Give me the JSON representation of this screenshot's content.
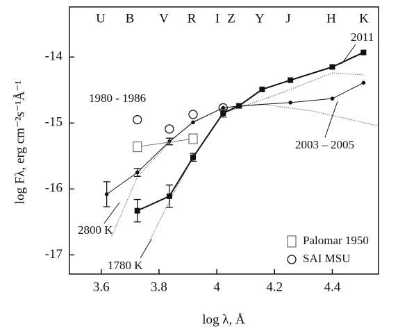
{
  "chart_data": {
    "type": "scatter",
    "xlabel": "log λ, Å",
    "ylabel": "log Fλ, erg cm⁻²s⁻¹Å⁻¹",
    "xlim": [
      3.49,
      4.56
    ],
    "xticks": [
      3.6,
      3.8,
      4.0,
      4.2,
      4.4
    ],
    "ylim": [
      -17.29,
      -13.24
    ],
    "yticks": [
      -14,
      -15,
      -16,
      -17
    ],
    "bands": [
      "U",
      "B",
      "V",
      "R",
      "I",
      "Z",
      "Y",
      "J",
      "H",
      "K"
    ],
    "annotations": [
      "1980 - 1986"
    ],
    "series": [
      {
        "name": "2011",
        "marker": "square",
        "color": "#111",
        "x": [
          3.725,
          3.836,
          3.918,
          4.022,
          4.077,
          4.157,
          4.255,
          4.4,
          4.508
        ],
        "values": [
          -16.33,
          -16.11,
          -15.52,
          -14.85,
          -14.74,
          -14.49,
          -14.35,
          -14.15,
          -13.93
        ],
        "errors": [
          0.17,
          0.17,
          0.06,
          0.06,
          null,
          null,
          null,
          null,
          null
        ]
      },
      {
        "name": "2003 – 2005",
        "marker": "dot",
        "color": "#111",
        "x": [
          3.619,
          3.725,
          3.836,
          3.918,
          4.022,
          4.077,
          4.255,
          4.4,
          4.508
        ],
        "values": [
          -16.08,
          -15.75,
          -15.28,
          -14.99,
          -14.77,
          -14.74,
          -14.69,
          -14.63,
          -14.39
        ],
        "errors": [
          0.19,
          0.06,
          0.05,
          null,
          null,
          null,
          null,
          null,
          null
        ]
      },
      {
        "name": "Palomar 1950",
        "marker": "open-square",
        "color": "#777",
        "legend": true,
        "x": [
          3.725,
          3.918
        ],
        "values": [
          -15.36,
          -15.24
        ]
      },
      {
        "name": "SAI MSU",
        "marker": "open-circle",
        "color": "#111",
        "legend": true,
        "x": [
          3.725,
          3.836,
          3.918,
          4.022
        ],
        "values": [
          -14.95,
          -15.09,
          -14.87,
          -14.77
        ]
      }
    ],
    "models": [
      {
        "name": "2800 K",
        "x": [
          3.636,
          3.725,
          3.836,
          3.918,
          4.022,
          4.166,
          4.335,
          4.564
        ],
        "values": [
          -16.72,
          -15.82,
          -15.29,
          -14.98,
          -14.77,
          -14.72,
          -14.82,
          -15.05
        ]
      },
      {
        "name": "1780 K",
        "x": [
          3.769,
          3.836,
          3.918,
          4.022,
          4.214,
          4.4,
          4.508
        ],
        "values": [
          -16.77,
          -16.19,
          -15.51,
          -14.85,
          -14.56,
          -14.24,
          -14.27
        ]
      }
    ]
  }
}
